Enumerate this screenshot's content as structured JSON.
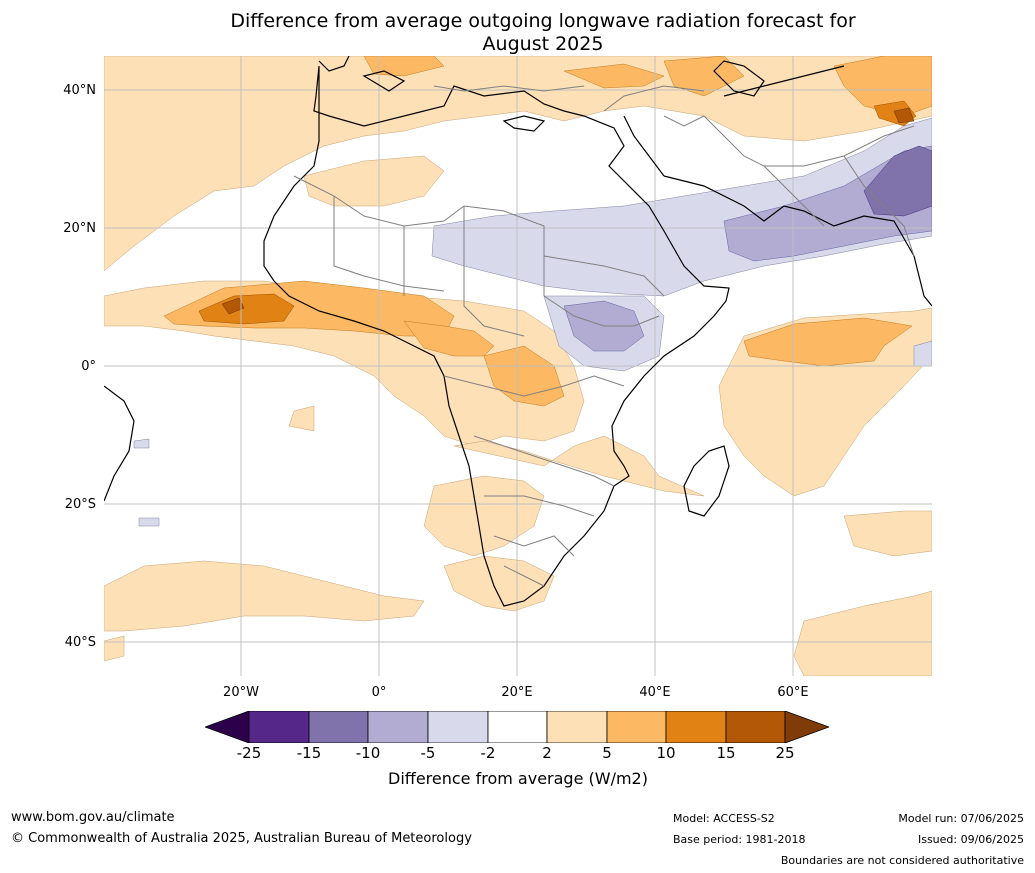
{
  "title_line1": "Difference from average outgoing longwave radiation forecast for",
  "title_line2": "August 2025",
  "map": {
    "lat_labels": [
      "40°N",
      "20°N",
      "0°",
      "20°S",
      "40°S"
    ],
    "lon_labels": [
      "20°W",
      "0°",
      "20°E",
      "40°E",
      "60°E"
    ],
    "colors": {
      "p25": "#2d004b",
      "p15": "#542788",
      "p10": "#8073ac",
      "p5": "#b2abd2",
      "p2": "#d8daeb",
      "neutral": "#ffffff",
      "o2": "#fee0b6",
      "o5": "#fdb863",
      "o10": "#e08214",
      "o15": "#b35806",
      "o25": "#7f3b08"
    }
  },
  "colorbar": {
    "ticks": [
      "-25",
      "-15",
      "-10",
      "-5",
      "-2",
      "2",
      "5",
      "10",
      "15",
      "25"
    ],
    "label": "Difference from average (W/m2)"
  },
  "footer": {
    "url": "www.bom.gov.au/climate",
    "copyright": "© Commonwealth of Australia 2025, Australian Bureau of Meteorology",
    "model": "Model: ACCESS-S2",
    "base_period": "Base period: 1981-2018",
    "model_run": "Model run: 07/06/2025",
    "issued": "Issued: 09/06/2025",
    "disclaimer": "Boundaries are not considered authoritative"
  }
}
